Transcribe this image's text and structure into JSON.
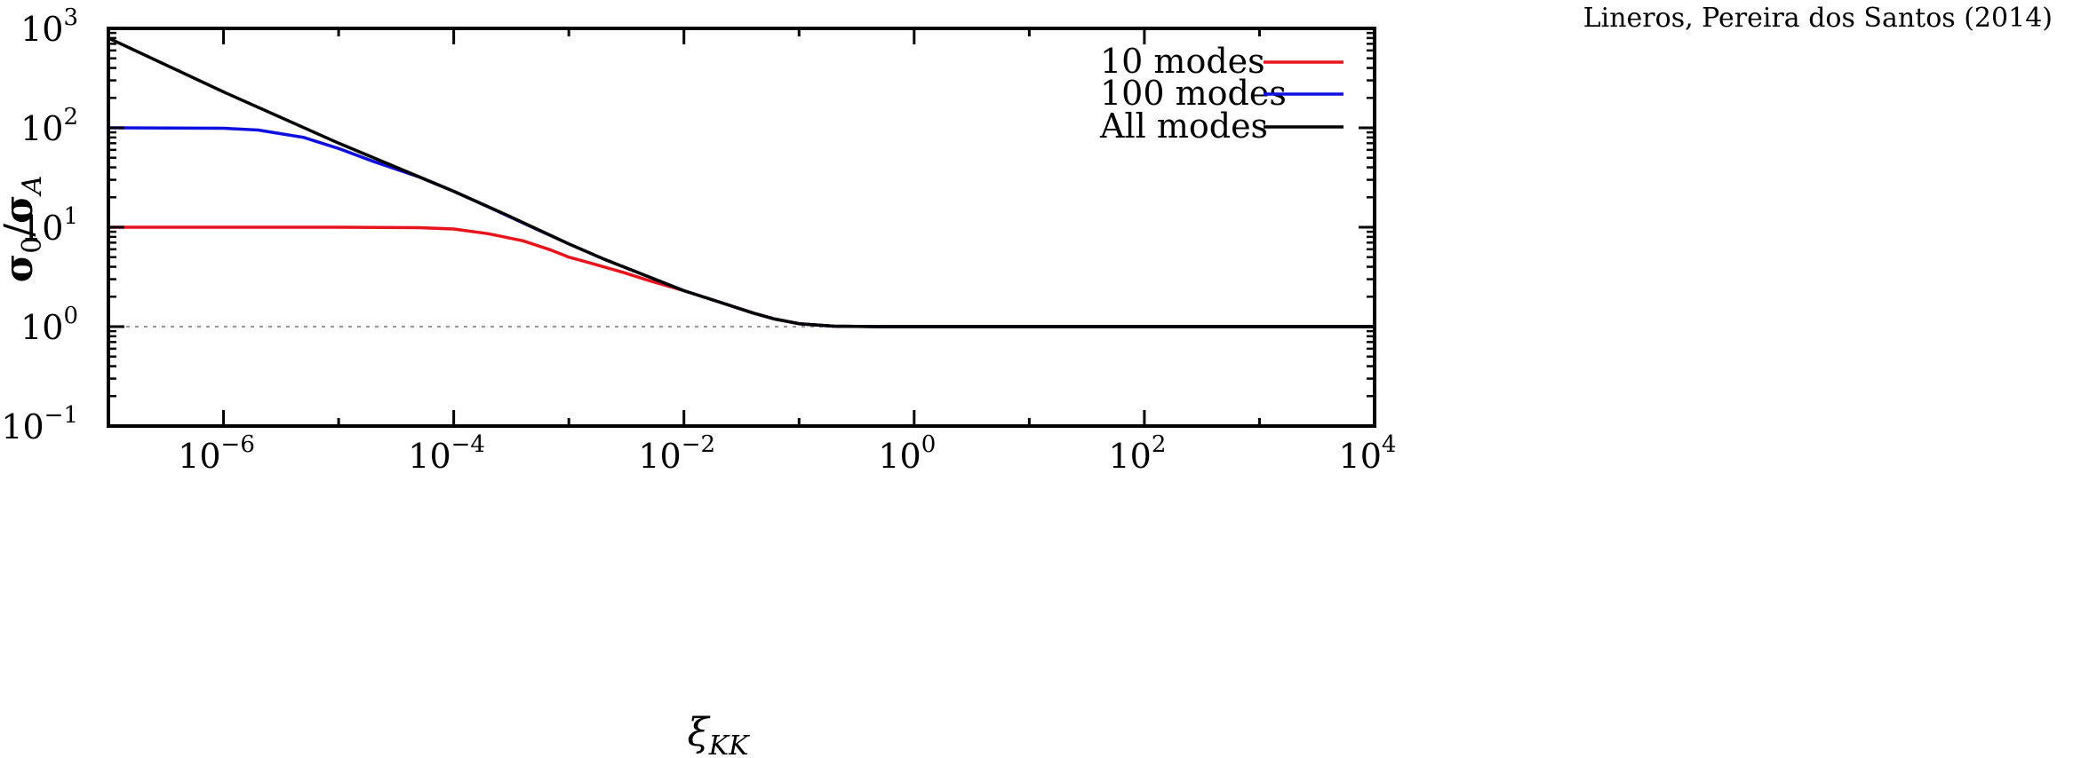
{
  "credit": "Lineros, Pereira dos Santos (2014)",
  "chart_data": {
    "type": "line",
    "x_scale": "log",
    "y_scale": "log",
    "xlim": [
      1e-07,
      10000
    ],
    "ylim": [
      0.1,
      1000
    ],
    "xlabel": {
      "base": "ξ",
      "sub": "KK"
    },
    "ylabel": {
      "num": "σ",
      "num_sub": "0",
      "sep": "/",
      "den": "σ",
      "den_sub": "A"
    },
    "x_ticks": [
      {
        "value": 1e-06,
        "base": "10",
        "exp": "−6"
      },
      {
        "value": 0.0001,
        "base": "10",
        "exp": "−4"
      },
      {
        "value": 0.01,
        "base": "10",
        "exp": "−2"
      },
      {
        "value": 1,
        "base": "10",
        "exp": "0"
      },
      {
        "value": 100,
        "base": "10",
        "exp": "2"
      },
      {
        "value": 10000,
        "base": "10",
        "exp": "4"
      }
    ],
    "y_ticks": [
      {
        "value": 0.1,
        "base": "10",
        "exp": "−1"
      },
      {
        "value": 1,
        "base": "10",
        "exp": "0"
      },
      {
        "value": 10,
        "base": "10",
        "exp": "1"
      },
      {
        "value": 100,
        "base": "10",
        "exp": "2"
      },
      {
        "value": 1000,
        "base": "10",
        "exp": "3"
      }
    ],
    "reference_line": {
      "y": 1,
      "style": "dotted",
      "color": "#999999"
    },
    "legend_position": "top-right",
    "series": [
      {
        "name": "10 modes",
        "color": "#e8141c",
        "points": [
          [
            1e-07,
            10
          ],
          [
            1e-06,
            10
          ],
          [
            1e-05,
            10
          ],
          [
            5e-05,
            9.9
          ],
          [
            0.0001,
            9.6
          ],
          [
            0.0002,
            8.6
          ],
          [
            0.0004,
            7.3
          ],
          [
            0.0007,
            5.9
          ],
          [
            0.001,
            5.0
          ],
          [
            0.0015,
            4.4
          ],
          [
            0.002,
            4.0
          ],
          [
            0.003,
            3.5
          ],
          [
            0.005,
            2.9
          ],
          [
            0.01,
            2.3
          ],
          [
            0.02,
            1.78
          ],
          [
            0.04,
            1.37
          ],
          [
            0.06,
            1.2
          ],
          [
            0.1,
            1.07
          ],
          [
            0.2,
            1.01
          ],
          [
            0.5,
            1.0
          ],
          [
            1,
            1
          ],
          [
            10000,
            1
          ]
        ]
      },
      {
        "name": "100 modes",
        "color": "#0f0fe0",
        "points": [
          [
            1e-07,
            100
          ],
          [
            1e-06,
            99
          ],
          [
            2e-06,
            95
          ],
          [
            5e-06,
            80
          ],
          [
            1e-05,
            62
          ],
          [
            2e-05,
            46
          ],
          [
            5e-05,
            32
          ],
          [
            0.0001,
            23
          ],
          [
            0.0002,
            16
          ],
          [
            0.0005,
            9.8
          ],
          [
            0.001,
            6.8
          ],
          [
            0.002,
            4.8
          ],
          [
            0.004,
            3.5
          ],
          [
            0.01,
            2.3
          ],
          [
            0.02,
            1.78
          ],
          [
            0.04,
            1.37
          ],
          [
            0.06,
            1.2
          ],
          [
            0.1,
            1.07
          ],
          [
            0.2,
            1.01
          ],
          [
            0.5,
            1.0
          ],
          [
            1,
            1
          ],
          [
            10000,
            1
          ]
        ]
      },
      {
        "name": "All modes",
        "color": "#000000",
        "points": [
          [
            1e-07,
            800
          ],
          [
            1e-06,
            230
          ],
          [
            1e-05,
            70
          ],
          [
            0.0001,
            23
          ],
          [
            0.0003,
            13
          ],
          [
            0.001,
            6.8
          ],
          [
            0.002,
            4.8
          ],
          [
            0.004,
            3.5
          ],
          [
            0.01,
            2.3
          ],
          [
            0.02,
            1.78
          ],
          [
            0.04,
            1.37
          ],
          [
            0.06,
            1.2
          ],
          [
            0.1,
            1.07
          ],
          [
            0.2,
            1.01
          ],
          [
            0.5,
            1.0
          ],
          [
            1,
            1
          ],
          [
            10000,
            1
          ]
        ]
      }
    ]
  }
}
